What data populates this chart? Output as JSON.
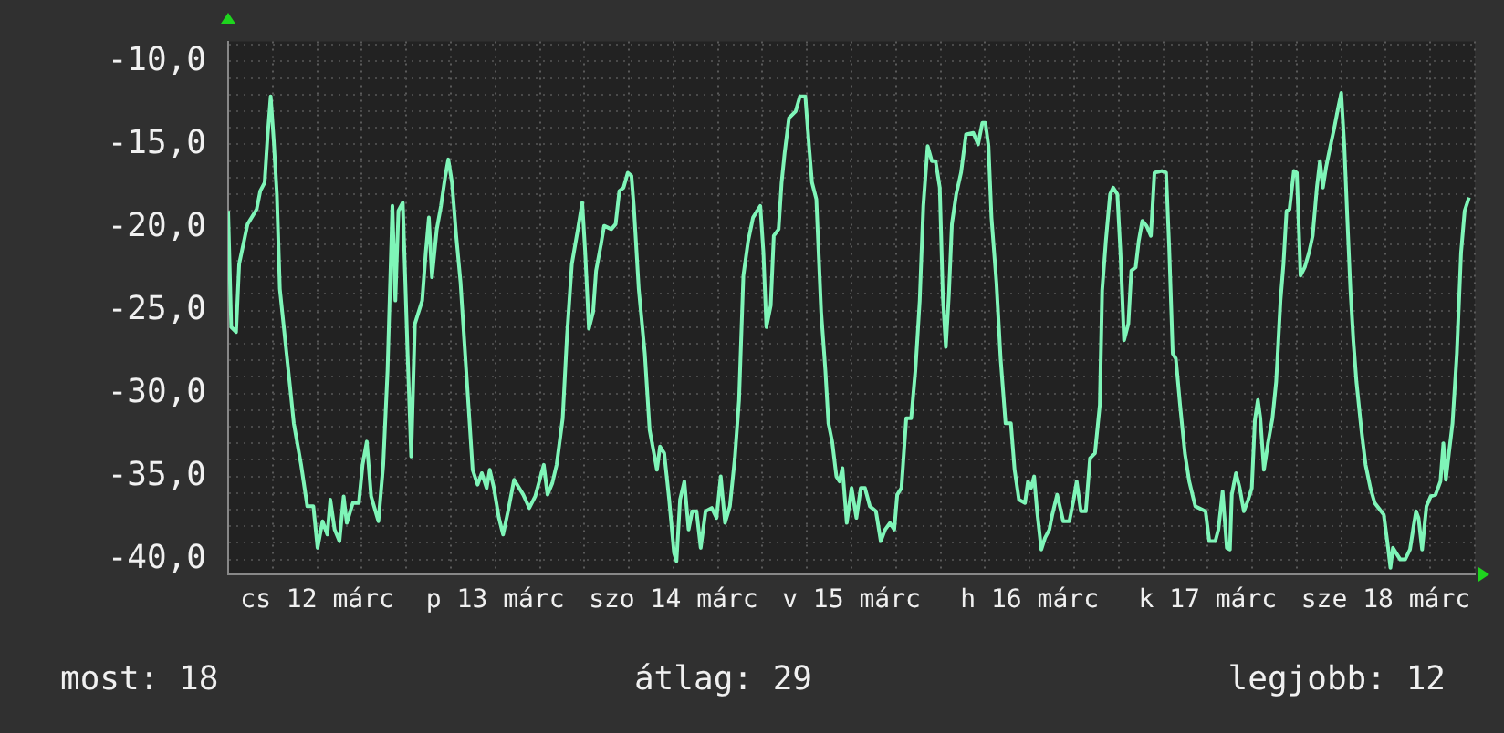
{
  "chart_data": {
    "type": "line",
    "x": [
      "--03-12T00:00",
      "--03-12T00:25",
      "--03-12T01:04",
      "--03-12T01:29",
      "--03-12T02:37",
      "--03-12T03:51",
      "--03-12T04:20",
      "--03-12T04:55",
      "--03-12T05:20",
      "--03-12T05:44",
      "--03-12T06:09",
      "--03-12T06:34",
      "--03-12T06:58",
      "--03-12T07:47",
      "--03-12T08:22",
      "--03-12T08:51",
      "--03-12T09:50",
      "--03-12T10:40",
      "--03-12T11:29",
      "--03-12T12:03",
      "--03-12T12:43",
      "--03-12T13:22",
      "--03-12T13:46",
      "--03-12T14:21",
      "--03-12T15:00",
      "--03-12T15:34",
      "--03-12T15:59",
      "--03-12T16:48",
      "--03-12T17:37",
      "--03-12T18:07",
      "--03-12T18:41",
      "--03-12T19:16",
      "--03-12T20:15",
      "--03-12T20:54",
      "--03-12T21:29",
      "--03-12T22:08",
      "--03-12T22:32",
      "--03-12T22:57",
      "--03-12T23:32",
      "--03-13T00:11",
      "--03-13T00:40",
      "--03-13T01:10",
      "--03-13T02:09",
      "--03-13T02:38",
      "--03-13T03:03",
      "--03-13T03:28",
      "--03-13T04:07",
      "--03-13T04:41",
      "--03-13T05:16",
      "--03-13T05:40",
      "--03-13T06:10",
      "--03-13T06:44",
      "--03-13T07:19",
      "--03-13T07:43",
      "--03-13T08:23",
      "--03-13T08:57",
      "--03-13T09:37",
      "--03-13T10:11",
      "--03-13T10:50",
      "--03-13T11:15",
      "--03-13T11:49",
      "--03-13T12:29",
      "--03-13T13:03",
      "--03-13T13:43",
      "--03-13T14:32",
      "--03-13T15:46",
      "--03-13T16:35",
      "--03-13T17:23",
      "--03-13T18:32",
      "--03-13T19:02",
      "--03-13T19:41",
      "--03-13T20:16",
      "--03-13T21:05",
      "--03-13T21:40",
      "--03-13T22:19",
      "--03-13T23:08",
      "--03-13T23:43",
      "--03-14T00:07",
      "--03-14T00:37",
      "--03-14T01:11",
      "--03-14T01:35",
      "--03-14T02:15",
      "--03-14T02:40",
      "--03-14T03:38",
      "--03-14T04:13",
      "--03-14T04:43",
      "--03-14T05:17",
      "--03-14T05:51",
      "--03-14T06:21",
      "--03-14T06:40",
      "--03-14T07:20",
      "--03-14T08:09",
      "--03-14T08:48",
      "--03-14T09:23",
      "--03-14T09:47",
      "--03-14T10:12",
      "--03-14T10:46",
      "--03-14T11:26",
      "--03-14T12:05",
      "--03-14T12:25",
      "--03-14T12:54",
      "--03-14T13:29",
      "--03-14T14:03",
      "--03-14T14:32",
      "--03-14T15:07",
      "--03-14T15:41",
      "--03-14T16:20",
      "--03-14T17:10",
      "--03-14T17:49",
      "--03-14T18:23",
      "--03-14T18:58",
      "--03-14T19:37",
      "--03-14T20:17",
      "--03-14T20:51",
      "--03-14T21:26",
      "--03-14T22:05",
      "--03-14T22:44",
      "--03-14T23:43",
      "--03-15T00:08",
      "--03-15T00:32",
      "--03-15T01:07",
      "--03-15T01:32",
      "--03-15T02:11",
      "--03-15T02:35",
      "--03-15T03:00",
      "--03-15T03:35",
      "--03-15T04:29",
      "--03-15T05:03",
      "--03-15T05:47",
      "--03-15T06:17",
      "--03-15T06:41",
      "--03-15T07:16",
      "--03-15T07:55",
      "--03-15T08:29",
      "--03-15T08:54",
      "--03-15T09:24",
      "--03-15T09:58",
      "--03-15T10:23",
      "--03-15T10:47",
      "--03-15T11:22",
      "--03-15T12:01",
      "--03-15T12:40",
      "--03-15T13:15",
      "--03-15T13:49",
      "--03-15T14:29",
      "--03-15T15:18",
      "--03-15T15:57",
      "--03-15T16:32",
      "--03-15T17:11",
      "--03-15T17:46",
      "--03-15T18:10",
      "--03-15T18:44",
      "--03-15T19:23",
      "--03-15T20:03",
      "--03-15T20:37",
      "--03-15T21:12",
      "--03-15T21:41",
      "--03-15T22:16",
      "--03-15T22:50",
      "--03-15T23:20",
      "--03-15T23:54",
      "--03-16T00:19",
      "--03-16T00:43",
      "--03-16T01:08",
      "--03-16T01:32",
      "--03-16T02:07",
      "--03-16T02:46",
      "--03-16T03:26",
      "--03-16T04:25",
      "--03-16T05:04",
      "--03-16T05:38",
      "--03-16T06:03",
      "--03-16T06:28",
      "--03-16T06:52",
      "--03-16T07:32",
      "--03-16T08:06",
      "--03-16T08:46",
      "--03-16T09:29",
      "--03-16T09:59",
      "--03-16T10:34",
      "--03-16T11:23",
      "--03-16T11:47",
      "--03-16T12:12",
      "--03-16T12:37",
      "--03-16T13:01",
      "--03-16T13:35",
      "--03-16T14:05",
      "--03-16T14:40",
      "--03-16T15:04",
      "--03-16T15:43",
      "--03-16T16:08",
      "--03-16T16:32",
      "--03-16T17:22",
      "--03-16T17:56",
      "--03-16T18:21",
      "--03-16T18:55",
      "--03-16T19:35",
      "--03-16T20:09",
      "--03-16T20:49",
      "--03-16T21:28",
      "--03-16T21:47",
      "--03-16T22:17",
      "--03-16T22:51",
      "--03-16T23:16",
      "--03-16T23:50",
      "--03-17T00:15",
      "--03-17T00:44",
      "--03-17T01:19",
      "--03-17T01:43",
      "--03-17T02:18",
      "--03-17T02:43",
      "--03-17T03:12",
      "--03-17T03:46",
      "--03-17T04:21",
      "--03-17T04:50",
      "--03-17T05:49",
      "--03-17T06:24",
      "--03-17T06:49",
      "--03-17T07:18",
      "--03-17T07:43",
      "--03-17T08:17",
      "--03-17T08:56",
      "--03-17T09:31",
      "--03-17T10:20",
      "--03-17T11:43",
      "--03-17T12:13",
      "--03-17T13:02",
      "--03-17T13:27",
      "--03-17T14:01",
      "--03-17T14:35",
      "--03-17T15:00",
      "--03-17T15:15",
      "--03-17T15:49",
      "--03-17T16:19",
      "--03-17T16:53",
      "--03-17T17:28",
      "--03-17T17:57",
      "--03-17T18:22",
      "--03-17T18:46",
      "--03-17T19:06",
      "--03-17T19:35",
      "--03-17T20:10",
      "--03-17T20:44",
      "--03-17T21:14",
      "--03-17T21:49",
      "--03-17T22:13",
      "--03-17T22:38",
      "--03-17T23:02",
      "--03-17T23:37",
      "--03-18T00:01",
      "--03-18T00:31",
      "--03-18T01:05",
      "--03-18T01:40",
      "--03-18T02:09",
      "--03-18T02:43",
      "--03-18T03:08",
      "--03-18T03:32",
      "--03-18T03:57",
      "--03-18T04:32",
      "--03-18T05:01",
      "--03-18T05:35",
      "--03-18T06:00",
      "--03-18T06:25",
      "--03-18T06:49",
      "--03-18T07:14",
      "--03-18T07:38",
      "--03-18T08:03",
      "--03-18T08:43",
      "--03-18T09:17",
      "--03-18T09:56",
      "--03-18T10:31",
      "--03-18T11:44",
      "--03-18T12:19",
      "--03-18T12:38",
      "--03-18T12:58",
      "--03-18T13:23",
      "--03-18T13:57",
      "--03-18T14:37",
      "--03-18T15:16",
      "--03-18T15:41",
      "--03-18T16:05",
      "--03-18T16:25",
      "--03-18T16:54",
      "--03-18T17:29",
      "--03-18T18:03",
      "--03-18T18:43",
      "--03-18T19:22",
      "--03-18T19:46",
      "--03-18T20:06",
      "--03-18T20:31",
      "--03-18T21:00",
      "--03-18T21:35",
      "--03-18T22:09",
      "--03-18T22:38",
      "--03-18T23:13"
    ],
    "series": [
      {
        "color": "#7ff5b8",
        "values": [
          -19.0,
          -26.0,
          -26.3,
          -22.2,
          -19.8,
          -18.9,
          -17.8,
          -17.3,
          -14.4,
          -12.1,
          -14.8,
          -18.0,
          -23.7,
          -27.2,
          -29.7,
          -31.8,
          -34.3,
          -36.8,
          -36.8,
          -39.3,
          -37.7,
          -38.5,
          -36.4,
          -38.2,
          -38.9,
          -36.2,
          -37.8,
          -36.6,
          -36.6,
          -34.3,
          -32.9,
          -36.2,
          -37.7,
          -34.3,
          -28.6,
          -18.7,
          -24.4,
          -19.0,
          -18.5,
          -27.6,
          -33.8,
          -25.8,
          -24.4,
          -21.5,
          -19.4,
          -23.0,
          -20.1,
          -18.7,
          -16.9,
          -15.9,
          -17.3,
          -20.5,
          -23.3,
          -26.1,
          -30.7,
          -34.6,
          -35.5,
          -34.8,
          -35.7,
          -34.6,
          -35.7,
          -37.5,
          -38.5,
          -37.1,
          -35.2,
          -36.1,
          -36.9,
          -36.2,
          -34.3,
          -36.1,
          -35.4,
          -34.3,
          -31.5,
          -26.5,
          -22.2,
          -20.1,
          -18.5,
          -21.5,
          -26.1,
          -25.1,
          -22.6,
          -21.0,
          -19.9,
          -20.1,
          -19.8,
          -17.8,
          -17.6,
          -16.7,
          -16.9,
          -18.7,
          -23.7,
          -27.6,
          -32.2,
          -33.6,
          -34.6,
          -33.2,
          -33.6,
          -36.4,
          -39.6,
          -40.1,
          -36.4,
          -35.3,
          -38.2,
          -37.1,
          -37.1,
          -39.3,
          -37.1,
          -36.9,
          -37.5,
          -35.0,
          -37.8,
          -36.8,
          -33.9,
          -30.4,
          -22.9,
          -20.8,
          -19.4,
          -18.7,
          -21.5,
          -26.0,
          -24.7,
          -20.5,
          -20.1,
          -17.3,
          -15.5,
          -13.4,
          -13.0,
          -12.1,
          -12.1,
          -15.1,
          -17.3,
          -18.3,
          -25.1,
          -28.6,
          -31.8,
          -32.9,
          -35.0,
          -35.3,
          -34.5,
          -37.8,
          -35.7,
          -37.5,
          -35.7,
          -35.7,
          -36.8,
          -37.1,
          -38.9,
          -38.2,
          -37.8,
          -38.2,
          -36.1,
          -35.7,
          -31.5,
          -31.5,
          -28.6,
          -24.4,
          -18.7,
          -15.1,
          -16.0,
          -16.0,
          -17.6,
          -24.2,
          -27.2,
          -24.0,
          -19.8,
          -18.0,
          -16.7,
          -14.4,
          -14.3,
          -15.0,
          -13.7,
          -13.7,
          -15.1,
          -19.4,
          -23.3,
          -27.9,
          -31.8,
          -31.8,
          -34.6,
          -36.4,
          -36.6,
          -35.3,
          -35.7,
          -35.0,
          -37.1,
          -39.4,
          -38.7,
          -38.2,
          -37.3,
          -36.1,
          -36.9,
          -37.7,
          -37.7,
          -36.4,
          -35.3,
          -37.1,
          -37.1,
          -33.9,
          -33.6,
          -30.7,
          -23.8,
          -20.8,
          -18.0,
          -17.6,
          -18.0,
          -21.5,
          -26.8,
          -25.8,
          -22.6,
          -22.4,
          -20.8,
          -19.6,
          -19.9,
          -20.5,
          -16.7,
          -16.6,
          -16.7,
          -21.2,
          -27.6,
          -27.9,
          -30.7,
          -33.6,
          -35.3,
          -36.8,
          -37.1,
          -38.9,
          -38.9,
          -38.2,
          -35.9,
          -39.3,
          -39.4,
          -36.1,
          -34.8,
          -35.7,
          -37.1,
          -36.4,
          -35.7,
          -31.6,
          -30.4,
          -31.5,
          -34.6,
          -32.9,
          -31.5,
          -29.3,
          -24.4,
          -22.2,
          -19.0,
          -18.9,
          -16.6,
          -16.7,
          -22.9,
          -22.4,
          -21.5,
          -20.5,
          -17.6,
          -16.0,
          -17.6,
          -16.4,
          -15.1,
          -14.1,
          -12.8,
          -11.9,
          -15.1,
          -19.4,
          -23.7,
          -26.8,
          -29.3,
          -32.2,
          -34.3,
          -35.7,
          -36.6,
          -37.3,
          -39.3,
          -40.5,
          -39.3,
          -39.6,
          -40.0,
          -40.0,
          -39.4,
          -38.2,
          -37.1,
          -37.5,
          -39.4,
          -36.8,
          -36.2,
          -36.1,
          -35.3,
          -33.0,
          -35.2,
          -33.6,
          -31.8,
          -27.6,
          -21.5,
          -19.0,
          -18.2
        ]
      }
    ],
    "xlim": [
      "--03-12T00:00",
      "--03-19T00:00"
    ],
    "ylim": [
      -40.9,
      -8.8
    ],
    "xticks": [
      {
        "value": "--03-12T00:00",
        "label": null
      },
      {
        "value": "--03-12T06:00",
        "label": null
      },
      {
        "value": "--03-12T12:00",
        "label": "cs 12 márc"
      },
      {
        "value": "--03-12T18:00",
        "label": null
      },
      {
        "value": "--03-13T00:00",
        "label": null
      },
      {
        "value": "--03-13T06:00",
        "label": null
      },
      {
        "value": "--03-13T12:00",
        "label": "p 13 márc"
      },
      {
        "value": "--03-13T18:00",
        "label": null
      },
      {
        "value": "--03-14T00:00",
        "label": null
      },
      {
        "value": "--03-14T06:00",
        "label": null
      },
      {
        "value": "--03-14T12:00",
        "label": "szo 14 márc"
      },
      {
        "value": "--03-14T18:00",
        "label": null
      },
      {
        "value": "--03-15T00:00",
        "label": null
      },
      {
        "value": "--03-15T06:00",
        "label": null
      },
      {
        "value": "--03-15T12:00",
        "label": "v 15 márc"
      },
      {
        "value": "--03-15T18:00",
        "label": null
      },
      {
        "value": "--03-16T00:00",
        "label": null
      },
      {
        "value": "--03-16T06:00",
        "label": null
      },
      {
        "value": "--03-16T12:00",
        "label": "h 16 márc"
      },
      {
        "value": "--03-16T18:00",
        "label": null
      },
      {
        "value": "--03-17T00:00",
        "label": null
      },
      {
        "value": "--03-17T06:00",
        "label": null
      },
      {
        "value": "--03-17T12:00",
        "label": "k 17 márc"
      },
      {
        "value": "--03-17T18:00",
        "label": null
      },
      {
        "value": "--03-18T00:00",
        "label": null
      },
      {
        "value": "--03-18T06:00",
        "label": null
      },
      {
        "value": "--03-18T12:00",
        "label": "sze 18 márc"
      },
      {
        "value": "--03-18T18:00",
        "label": null
      },
      {
        "value": "--03-19T00:00",
        "label": null
      }
    ],
    "yticks": [
      {
        "value": -9,
        "label": null
      },
      {
        "value": -10,
        "label": "-10,0"
      },
      {
        "value": -11,
        "label": null
      },
      {
        "value": -12,
        "label": null
      },
      {
        "value": -13,
        "label": null
      },
      {
        "value": -14,
        "label": null
      },
      {
        "value": -15,
        "label": "-15,0"
      },
      {
        "value": -16,
        "label": null
      },
      {
        "value": -17,
        "label": null
      },
      {
        "value": -18,
        "label": null
      },
      {
        "value": -19,
        "label": null
      },
      {
        "value": -20,
        "label": "-20,0"
      },
      {
        "value": -21,
        "label": null
      },
      {
        "value": -22,
        "label": null
      },
      {
        "value": -23,
        "label": null
      },
      {
        "value": -24,
        "label": null
      },
      {
        "value": -25,
        "label": "-25,0"
      },
      {
        "value": -26,
        "label": null
      },
      {
        "value": -27,
        "label": null
      },
      {
        "value": -28,
        "label": null
      },
      {
        "value": -29,
        "label": null
      },
      {
        "value": -30,
        "label": "-30,0"
      },
      {
        "value": -31,
        "label": null
      },
      {
        "value": -32,
        "label": null
      },
      {
        "value": -33,
        "label": null
      },
      {
        "value": -34,
        "label": null
      },
      {
        "value": -35,
        "label": "-35,0"
      },
      {
        "value": -36,
        "label": null
      },
      {
        "value": -37,
        "label": null
      },
      {
        "value": -38,
        "label": null
      },
      {
        "value": -39,
        "label": null
      },
      {
        "value": -40,
        "label": "-40,0"
      }
    ],
    "grid": true,
    "annotations": [
      "most: 18",
      "átlag: 29",
      "legjobb: 12"
    ]
  }
}
